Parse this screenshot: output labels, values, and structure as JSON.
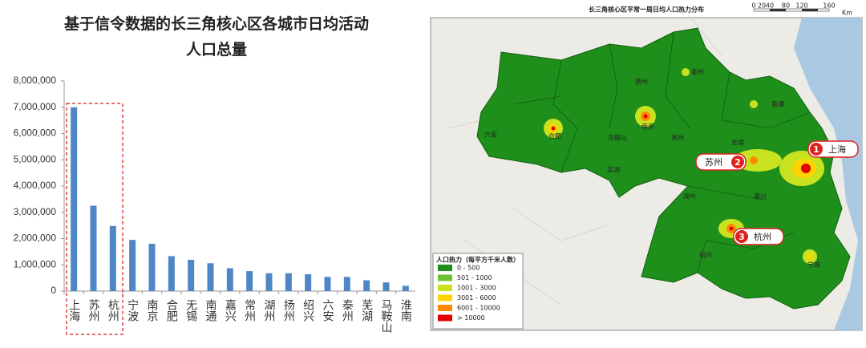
{
  "chart_data": {
    "type": "bar",
    "title": "基于信令数据的长三角核心区各城市日均活动",
    "subtitle": "人口总量",
    "categories": [
      "上海",
      "苏州",
      "杭州",
      "宁波",
      "南京",
      "合肥",
      "无锡",
      "南通",
      "嘉兴",
      "常州",
      "湖州",
      "扬州",
      "绍兴",
      "六安",
      "泰州",
      "芜湖",
      "马鞍山",
      "淮南"
    ],
    "values": [
      7000000,
      3250000,
      2480000,
      1950000,
      1800000,
      1330000,
      1190000,
      1060000,
      870000,
      760000,
      680000,
      680000,
      640000,
      540000,
      540000,
      410000,
      330000,
      200000
    ],
    "color": "#4f86c6",
    "ylim": [
      0,
      8000000
    ],
    "yticks": [
      0,
      {
        "value": 1000000,
        "label": "1,000,000"
      },
      {
        "value": 2000000,
        "label": "2,000,000"
      },
      {
        "value": 3000000,
        "label": "3,000,000"
      },
      {
        "value": 4000000,
        "label": "4,000,000"
      },
      {
        "value": 5000000,
        "label": "5,000,000"
      },
      {
        "value": 6000000,
        "label": "6,000,000"
      },
      {
        "value": 7000000,
        "label": "7,000,000"
      },
      {
        "value": 8000000,
        "label": "8,000,000"
      }
    ],
    "grid": false
  },
  "map": {
    "title": "长三角核心区平常一周日均人口热力分布",
    "scale_labels": [
      "0",
      "20",
      "40",
      "80",
      "120",
      "160"
    ],
    "scale_unit": "Km",
    "legend": {
      "title": "人口热力（每平方千米人数）",
      "items": [
        {
          "label": "0 - 500",
          "color": "#1f8f1c"
        },
        {
          "label": "501 - 1000",
          "color": "#6cc12e"
        },
        {
          "label": "1001 - 3000",
          "color": "#c9e21f"
        },
        {
          "label": "3001 - 6000",
          "color": "#ffd200"
        },
        {
          "label": "6001 - 10000",
          "color": "#ff8a00"
        },
        {
          "label": "> 10000",
          "color": "#e30000"
        }
      ]
    },
    "callouts": [
      {
        "number": "1",
        "label": "上海"
      },
      {
        "number": "2",
        "label": "苏州"
      },
      {
        "number": "3",
        "label": "杭州"
      }
    ],
    "city_labels": [
      "六安",
      "合肥",
      "南京",
      "马鞍山",
      "芜湖",
      "常州",
      "无锡",
      "嘉兴",
      "湖州",
      "绍兴",
      "宁波",
      "南通",
      "扬州",
      "泰州"
    ]
  }
}
